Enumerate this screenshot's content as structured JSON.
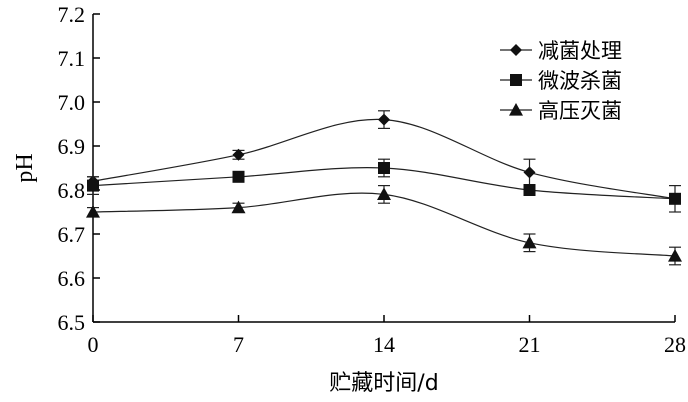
{
  "chart_data": {
    "type": "line",
    "title": "",
    "xlabel": "贮藏时间/d",
    "ylabel": "pH",
    "x": [
      0,
      7,
      14,
      21,
      28
    ],
    "x_tick_labels": [
      "0",
      "7",
      "14",
      "21",
      "28"
    ],
    "xlim": [
      0,
      28
    ],
    "ylim": [
      6.5,
      7.2
    ],
    "y_ticks": [
      6.5,
      6.6,
      6.7,
      6.8,
      6.9,
      7.0,
      7.1,
      7.2
    ],
    "y_tick_labels": [
      "6.5",
      "6.6",
      "6.7",
      "6.8",
      "6.9",
      "7.0",
      "7.1",
      "7.2"
    ],
    "grid": false,
    "legend_position": "top-right",
    "series": [
      {
        "name": "减菌处理",
        "marker": "diamond",
        "values": [
          6.82,
          6.88,
          6.96,
          6.84,
          6.78
        ],
        "errors": [
          0.01,
          0.01,
          0.02,
          0.03,
          0.01
        ]
      },
      {
        "name": "微波杀菌",
        "marker": "square",
        "values": [
          6.81,
          6.83,
          6.85,
          6.8,
          6.78
        ],
        "errors": [
          0.02,
          0.01,
          0.02,
          0.01,
          0.03
        ]
      },
      {
        "name": "高压灭菌",
        "marker": "triangle",
        "values": [
          6.75,
          6.76,
          6.79,
          6.68,
          6.65
        ],
        "errors": [
          0.01,
          0.01,
          0.02,
          0.02,
          0.02
        ]
      }
    ]
  }
}
